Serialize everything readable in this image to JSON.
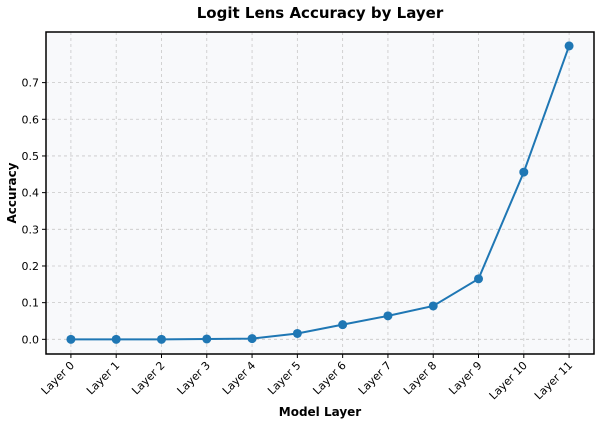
{
  "chart_data": {
    "type": "line",
    "title": "Logit Lens Accuracy by Layer",
    "xlabel": "Model Layer",
    "ylabel": "Accuracy",
    "categories": [
      "Layer 0",
      "Layer 1",
      "Layer 2",
      "Layer 3",
      "Layer 4",
      "Layer 5",
      "Layer 6",
      "Layer 7",
      "Layer 8",
      "Layer 9",
      "Layer 10",
      "Layer 11"
    ],
    "values": [
      0.0,
      0.0,
      0.0,
      0.001,
      0.002,
      0.016,
      0.04,
      0.064,
      0.091,
      0.165,
      0.456,
      0.8
    ],
    "yticks": [
      0.0,
      0.1,
      0.2,
      0.3,
      0.4,
      0.5,
      0.6,
      0.7
    ],
    "ytick_labels": [
      "0.0",
      "0.1",
      "0.2",
      "0.3",
      "0.4",
      "0.5",
      "0.6",
      "0.7"
    ],
    "ylim": [
      -0.04,
      0.838
    ],
    "grid": true,
    "line_color": "#1f77b4",
    "background_color": "#f8f9fb",
    "marker": "circle"
  }
}
